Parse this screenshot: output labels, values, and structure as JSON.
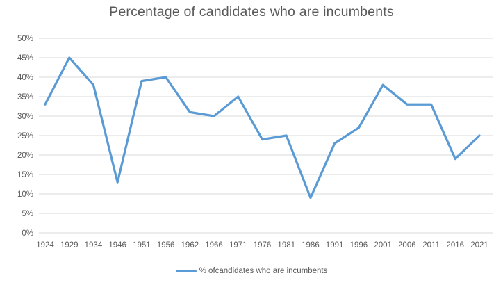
{
  "chart": {
    "title": "Percentage of candidates who are incumbents",
    "legend": {
      "label": "% ofcandidates who are incumbents",
      "swatch_color": "#5B9BD5"
    }
  },
  "chart_data": {
    "type": "line",
    "title": "Percentage of candidates who are incumbents",
    "categories": [
      "1924",
      "1929",
      "1934",
      "1946",
      "1951",
      "1956",
      "1962",
      "1966",
      "1971",
      "1976",
      "1981",
      "1986",
      "1991",
      "1996",
      "2001",
      "2006",
      "2011",
      "2016",
      "2021"
    ],
    "series": [
      {
        "name": "% ofcandidates who are incumbents",
        "color": "#5B9BD5",
        "values": [
          33,
          45,
          38,
          13,
          39,
          40,
          31,
          30,
          35,
          24,
          25,
          9,
          23,
          27,
          38,
          33,
          33,
          19,
          25
        ]
      }
    ],
    "ylabel": "",
    "xlabel": "",
    "ylim": [
      0,
      50
    ],
    "ytick_step": 5,
    "ytick_suffix": "%",
    "grid": "horizontal",
    "gridline_color": "#D9D9D9",
    "text_color": "#595959",
    "legend_position": "bottom"
  }
}
